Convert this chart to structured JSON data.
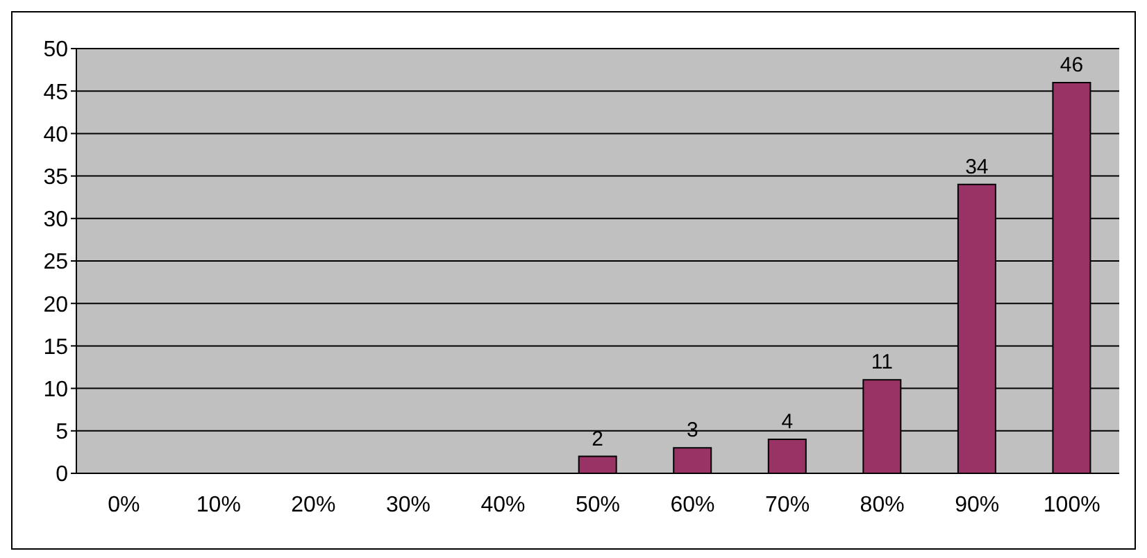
{
  "chart_data": {
    "type": "bar",
    "categories": [
      "0%",
      "10%",
      "20%",
      "30%",
      "40%",
      "50%",
      "60%",
      "70%",
      "80%",
      "90%",
      "100%"
    ],
    "values": [
      0,
      0,
      0,
      0,
      0,
      2,
      3,
      4,
      11,
      34,
      46
    ],
    "value_labels": [
      null,
      null,
      null,
      null,
      null,
      "2",
      "3",
      "4",
      "11",
      "34",
      "46"
    ],
    "color": "#993366",
    "ylim": [
      0,
      50
    ],
    "yticks": [
      0,
      5,
      10,
      15,
      20,
      25,
      30,
      35,
      40,
      45,
      50
    ],
    "grid": "y"
  }
}
